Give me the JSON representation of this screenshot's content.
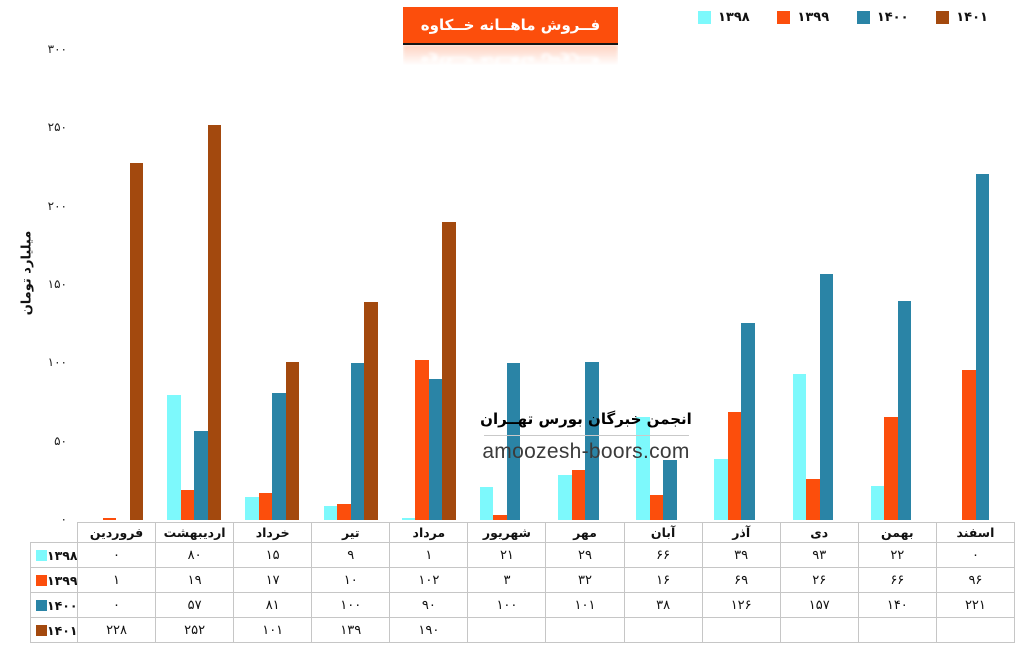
{
  "title": "فــروش ماهــانه خــکاوه",
  "colors": {
    "title_bg": "#FC4E0C",
    "series_1398": "#7DF9FC",
    "series_1399": "#FC4E0C",
    "series_1400": "#2A84A6",
    "series_1401": "#A3490E",
    "table_border": "#c6c6c6"
  },
  "watermark": {
    "line1": "انجمن خبرگان بورس تهــران",
    "line2": "amoozesh-boors.com"
  },
  "y_axis": {
    "title": "میلیارد تومان",
    "ticks": [
      {
        "label": "۳۰۰",
        "value": 300
      },
      {
        "label": "۲۵۰",
        "value": 250
      },
      {
        "label": "۲۰۰",
        "value": 200
      },
      {
        "label": "۱۵۰",
        "value": 150
      },
      {
        "label": "۱۰۰",
        "value": 100
      },
      {
        "label": "۵۰",
        "value": 50
      },
      {
        "label": "۰",
        "value": 0
      }
    ]
  },
  "chart_data": {
    "type": "bar",
    "title": "فــروش ماهــانه خــکاوه",
    "xlabel": "",
    "ylabel": "میلیارد تومان",
    "ylim": [
      0,
      300
    ],
    "grid": false,
    "legend_position": "top-right",
    "categories": [
      "فروردین",
      "اردیبهشت",
      "خرداد",
      "تیر",
      "مرداد",
      "شهریور",
      "مهر",
      "آبان",
      "آذر",
      "دی",
      "بهمن",
      "اسفند"
    ],
    "series": [
      {
        "id": "1398",
        "name": "۱۳۹۸",
        "color": "#7DF9FC",
        "values": [
          0,
          80,
          15,
          9,
          1,
          21,
          29,
          66,
          39,
          93,
          22,
          0
        ],
        "labels": [
          "۰",
          "۸۰",
          "۱۵",
          "۹",
          "۱",
          "۲۱",
          "۲۹",
          "۶۶",
          "۳۹",
          "۹۳",
          "۲۲",
          "۰"
        ]
      },
      {
        "id": "1399",
        "name": "۱۳۹۹",
        "color": "#FC4E0C",
        "values": [
          1,
          19,
          17,
          10,
          102,
          3,
          32,
          16,
          69,
          26,
          66,
          96
        ],
        "labels": [
          "۱",
          "۱۹",
          "۱۷",
          "۱۰",
          "۱۰۲",
          "۳",
          "۳۲",
          "۱۶",
          "۶۹",
          "۲۶",
          "۶۶",
          "۹۶"
        ]
      },
      {
        "id": "1400",
        "name": "۱۴۰۰",
        "color": "#2A84A6",
        "values": [
          0,
          57,
          81,
          100,
          90,
          100,
          101,
          38,
          126,
          157,
          140,
          221
        ],
        "labels": [
          "۰",
          "۵۷",
          "۸۱",
          "۱۰۰",
          "۹۰",
          "۱۰۰",
          "۱۰۱",
          "۳۸",
          "۱۲۶",
          "۱۵۷",
          "۱۴۰",
          "۲۲۱"
        ]
      },
      {
        "id": "1401",
        "name": "۱۴۰۱",
        "color": "#A3490E",
        "values": [
          228,
          252,
          101,
          139,
          190,
          null,
          null,
          null,
          null,
          null,
          null,
          null
        ],
        "labels": [
          "۲۲۸",
          "۲۵۲",
          "۱۰۱",
          "۱۳۹",
          "۱۹۰",
          "",
          "",
          "",
          "",
          "",
          "",
          ""
        ]
      }
    ]
  }
}
